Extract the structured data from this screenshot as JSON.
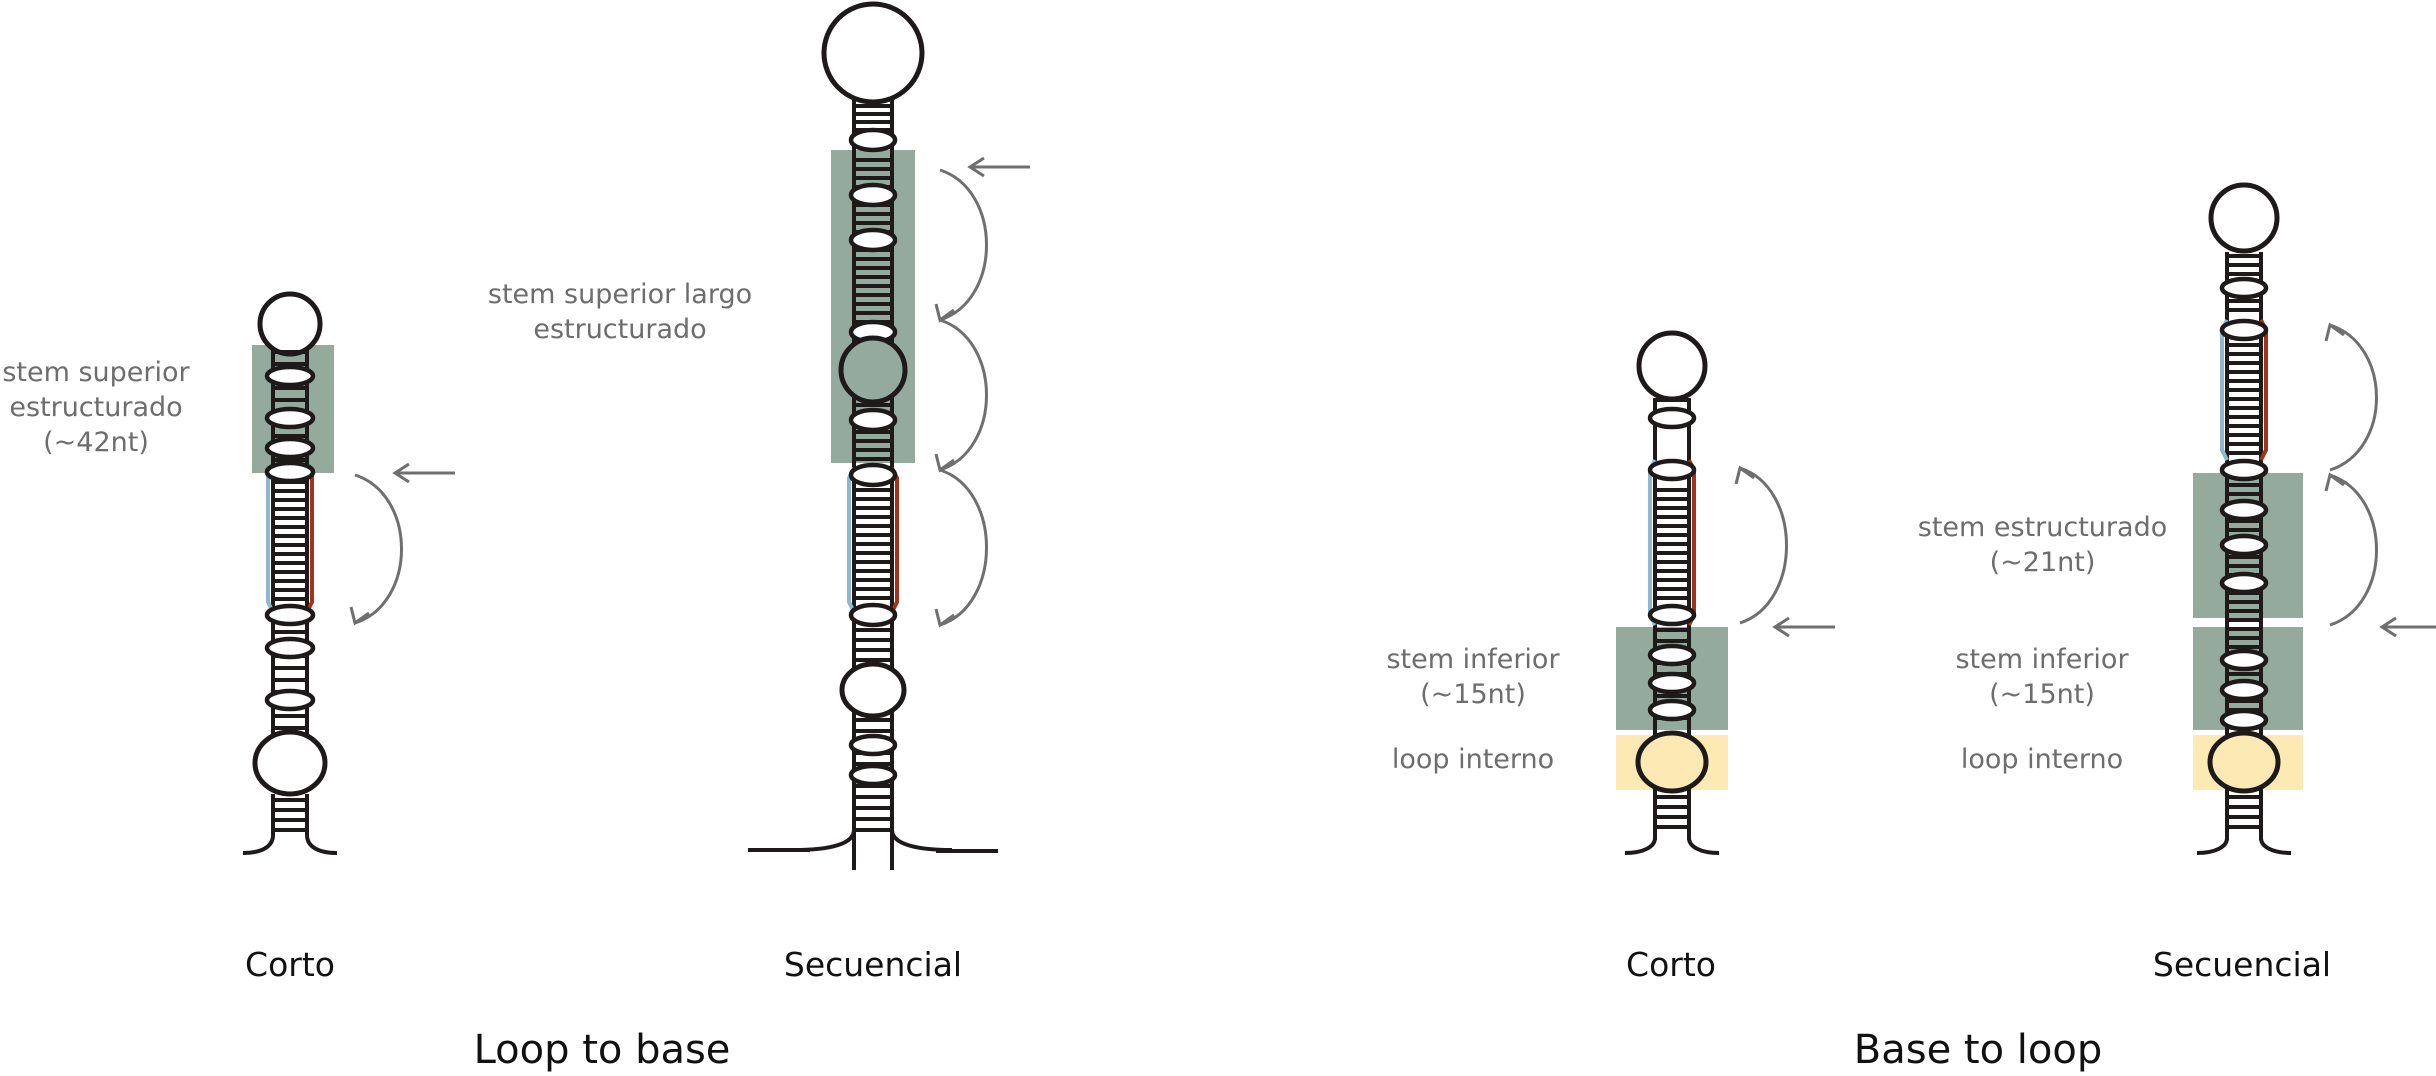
{
  "colors": {
    "outline": "#1e1a1a",
    "shade_green": "#94aa9c",
    "shade_yellow": "#fde9b3",
    "strand_blue": "#8fb7d0",
    "strand_red": "#a4321c",
    "arrow": "#6f6f6f",
    "text_gray": "#6d6d6d",
    "text_dark": "#111111"
  },
  "panels": [
    {
      "id": "loop-to-base",
      "title": "Loop to base",
      "constructs": [
        {
          "id": "lb-corto",
          "caption": "Corto",
          "annotations": [
            {
              "id": "stem-superior",
              "lines": [
                "stem superior",
                "estructurado",
                "(~42nt)"
              ],
              "shading": "shade_green"
            }
          ],
          "arrow_steps": 1,
          "arrow_direction": "down"
        },
        {
          "id": "lb-secuencial",
          "caption": "Secuencial",
          "annotations": [
            {
              "id": "stem-superior-largo",
              "lines": [
                "stem superior largo",
                "estructurado"
              ],
              "shading": "shade_green"
            }
          ],
          "arrow_steps": 3,
          "arrow_direction": "down"
        }
      ]
    },
    {
      "id": "base-to-loop",
      "title": "Base to loop",
      "constructs": [
        {
          "id": "bl-corto",
          "caption": "Corto",
          "annotations": [
            {
              "id": "stem-inferior",
              "lines": [
                "stem inferior",
                "(~15nt)"
              ],
              "shading": "shade_green"
            },
            {
              "id": "loop-interno",
              "lines": [
                "loop interno"
              ],
              "shading": "shade_yellow"
            }
          ],
          "arrow_steps": 1,
          "arrow_direction": "up"
        },
        {
          "id": "bl-secuencial",
          "caption": "Secuencial",
          "annotations": [
            {
              "id": "stem-estructurado",
              "lines": [
                "stem estructurado",
                "(~21nt)"
              ],
              "shading": "shade_green"
            },
            {
              "id": "stem-inferior",
              "lines": [
                "stem inferior",
                "(~15nt)"
              ],
              "shading": "shade_green"
            },
            {
              "id": "loop-interno",
              "lines": [
                "loop interno"
              ],
              "shading": "shade_yellow"
            }
          ],
          "arrow_steps": 2,
          "arrow_direction": "up"
        }
      ]
    }
  ]
}
